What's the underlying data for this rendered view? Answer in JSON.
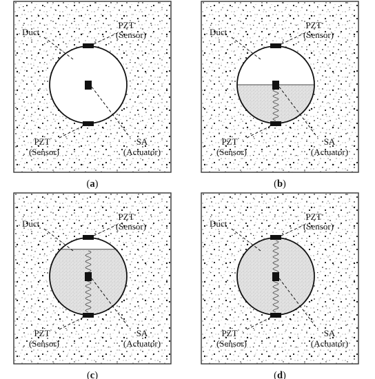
{
  "colors": {
    "background": "#ffffff",
    "concrete": "#e6e6e6",
    "grout": "#d2d2d2",
    "ink": "#111111"
  },
  "labels": {
    "duct": "Duct",
    "pzt": "PZT",
    "sensor": "(Sensor)",
    "sa": "SA",
    "actuator": "(Actuator)"
  },
  "panels": [
    {
      "caption_letter": "a",
      "grout_fill_fraction": 0.0
    },
    {
      "caption_letter": "b",
      "grout_fill_fraction": 0.5
    },
    {
      "caption_letter": "c",
      "grout_fill_fraction": 0.85
    },
    {
      "caption_letter": "d",
      "grout_fill_fraction": 1.0
    }
  ]
}
